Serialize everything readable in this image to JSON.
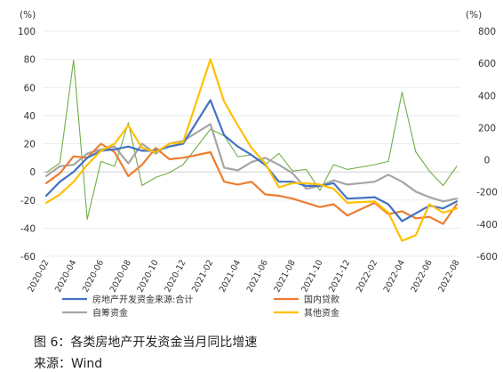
{
  "chart_data": {
    "type": "line",
    "left_unit": "(%)",
    "right_unit": "(%)",
    "ylim_left": [
      -60,
      100
    ],
    "ylim_right": [
      -600,
      800
    ],
    "yticks_left": [
      100,
      80,
      60,
      40,
      20,
      0,
      -20,
      -40,
      -60
    ],
    "yticks_right": [
      800,
      600,
      400,
      200,
      0,
      -200,
      -400,
      -600
    ],
    "x": [
      "2020-02",
      "2020-03",
      "2020-04",
      "2020-05",
      "2020-06",
      "2020-07",
      "2020-08",
      "2020-09",
      "2020-10",
      "2020-11",
      "2020-12",
      "2021-01",
      "2021-02",
      "2021-03",
      "2021-04",
      "2021-05",
      "2021-06",
      "2021-07",
      "2021-08",
      "2021-09",
      "2021-10",
      "2021-11",
      "2021-12",
      "2022-01",
      "2022-02",
      "2022-03",
      "2022-04",
      "2022-05",
      "2022-06",
      "2022-07",
      "2022-08"
    ],
    "xtick_labels": [
      "2020-02",
      "2020-04",
      "2020-06",
      "2020-08",
      "2020-10",
      "2020-12",
      "2021-02",
      "2021-04",
      "2021-06",
      "2021-08",
      "2021-10",
      "2021-12",
      "2022-02",
      "2022-04",
      "2022-06",
      "2022-08"
    ],
    "series": [
      {
        "name": "房地产开发资金来源:合计",
        "axis": "left",
        "color": "#4472c4",
        "values": [
          -17,
          -7,
          0,
          10,
          15,
          16,
          18,
          15,
          15,
          18,
          20,
          null,
          51,
          26,
          18,
          12,
          5,
          -7,
          -7,
          -10,
          -10,
          -8,
          -19,
          null,
          -18,
          -23,
          -35,
          null,
          -24,
          -26,
          -21
        ]
      },
      {
        "name": "国内贷款",
        "axis": "left",
        "color": "#ed7d31",
        "values": [
          -8,
          -1,
          11,
          10,
          20,
          14,
          -3,
          5,
          17,
          9,
          10,
          null,
          14,
          -7,
          -9,
          -7,
          -16,
          -17,
          -19,
          null,
          -25,
          -23,
          -31,
          null,
          -22,
          -30,
          -28,
          -33,
          -32,
          -37,
          -23
        ]
      },
      {
        "name": "自筹资金",
        "axis": "left",
        "color": "#a5a5a5",
        "values": [
          -3,
          4,
          5,
          13,
          16,
          18,
          6,
          20,
          13,
          20,
          22,
          null,
          34,
          3,
          1,
          7,
          10,
          5,
          -1,
          -12,
          -10,
          -6,
          -9,
          -8,
          -7,
          -2,
          -7,
          -14,
          -18,
          -21,
          -19
        ]
      },
      {
        "name": "其他资金",
        "axis": "left",
        "color": "#ffc000",
        "values": [
          -22,
          -16,
          -7,
          5,
          15,
          20,
          33,
          17,
          14,
          20,
          21,
          null,
          80,
          50,
          33,
          17,
          6,
          -11,
          -8,
          -8,
          -9,
          -12,
          -22,
          null,
          -21,
          -29,
          -49,
          -45,
          -23,
          -29,
          -26
        ]
      },
      {
        "name": "",
        "axis": "right",
        "color": "#70ad47",
        "values": [
          -80,
          -20,
          620,
          -370,
          -10,
          -40,
          230,
          -160,
          -110,
          -80,
          -30,
          null,
          190,
          150,
          20,
          30,
          -30,
          40,
          -70,
          -60,
          -190,
          -30,
          -60,
          null,
          -30,
          -10,
          420,
          50,
          -70,
          -160,
          -40
        ]
      }
    ]
  }
}
